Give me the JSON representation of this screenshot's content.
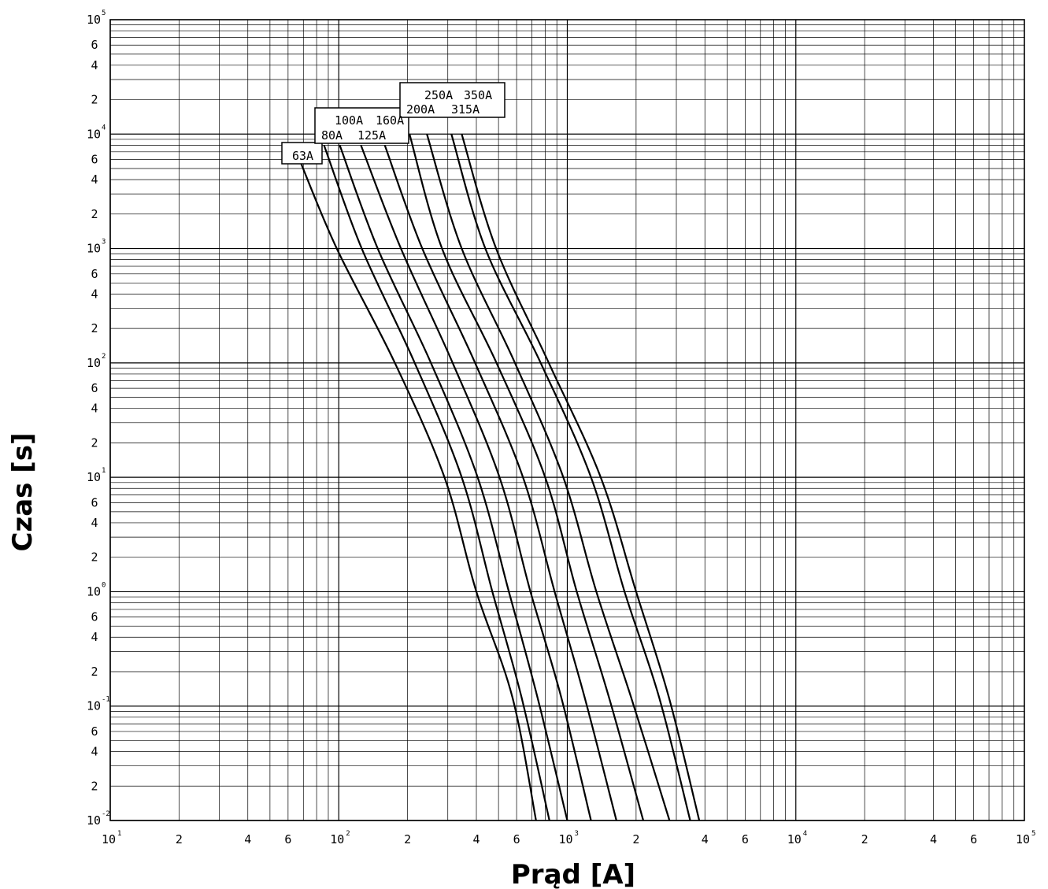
{
  "chart_data": {
    "type": "line",
    "xlabel": "Prąd [A]",
    "ylabel": "Czas [s]",
    "x_scale": "log",
    "y_scale": "log",
    "xlim": [
      10,
      100000
    ],
    "ylim": [
      0.01,
      100000
    ],
    "grid": true,
    "x_ticks": [
      {
        "value": 10,
        "base": "10",
        "exp": "1"
      },
      {
        "value": 20,
        "base": "2",
        "exp": ""
      },
      {
        "value": 40,
        "base": "4",
        "exp": ""
      },
      {
        "value": 60,
        "base": "6",
        "exp": ""
      },
      {
        "value": 100,
        "base": "10",
        "exp": "2"
      },
      {
        "value": 200,
        "base": "2",
        "exp": ""
      },
      {
        "value": 400,
        "base": "4",
        "exp": ""
      },
      {
        "value": 600,
        "base": "6",
        "exp": ""
      },
      {
        "value": 1000,
        "base": "10",
        "exp": "3"
      },
      {
        "value": 2000,
        "base": "2",
        "exp": ""
      },
      {
        "value": 4000,
        "base": "4",
        "exp": ""
      },
      {
        "value": 6000,
        "base": "6",
        "exp": ""
      },
      {
        "value": 10000,
        "base": "10",
        "exp": "4"
      },
      {
        "value": 20000,
        "base": "2",
        "exp": ""
      },
      {
        "value": 40000,
        "base": "4",
        "exp": ""
      },
      {
        "value": 60000,
        "base": "6",
        "exp": ""
      },
      {
        "value": 100000,
        "base": "10",
        "exp": "5"
      }
    ],
    "y_ticks": [
      {
        "value": 100000,
        "base": "10",
        "exp": "5"
      },
      {
        "value": 60000,
        "base": "6",
        "exp": ""
      },
      {
        "value": 40000,
        "base": "4",
        "exp": ""
      },
      {
        "value": 20000,
        "base": "2",
        "exp": ""
      },
      {
        "value": 10000,
        "base": "10",
        "exp": "4"
      },
      {
        "value": 6000,
        "base": "6",
        "exp": ""
      },
      {
        "value": 4000,
        "base": "4",
        "exp": ""
      },
      {
        "value": 2000,
        "base": "2",
        "exp": ""
      },
      {
        "value": 1000,
        "base": "10",
        "exp": "3"
      },
      {
        "value": 600,
        "base": "6",
        "exp": ""
      },
      {
        "value": 400,
        "base": "4",
        "exp": ""
      },
      {
        "value": 200,
        "base": "2",
        "exp": ""
      },
      {
        "value": 100,
        "base": "10",
        "exp": "2"
      },
      {
        "value": 60,
        "base": "6",
        "exp": ""
      },
      {
        "value": 40,
        "base": "4",
        "exp": ""
      },
      {
        "value": 20,
        "base": "2",
        "exp": ""
      },
      {
        "value": 10,
        "base": "10",
        "exp": "1"
      },
      {
        "value": 6,
        "base": "6",
        "exp": ""
      },
      {
        "value": 4,
        "base": "4",
        "exp": ""
      },
      {
        "value": 2,
        "base": "2",
        "exp": ""
      },
      {
        "value": 1,
        "base": "10",
        "exp": "0"
      },
      {
        "value": 0.6,
        "base": "6",
        "exp": ""
      },
      {
        "value": 0.4,
        "base": "4",
        "exp": ""
      },
      {
        "value": 0.2,
        "base": "2",
        "exp": ""
      },
      {
        "value": 0.1,
        "base": "10",
        "exp": "-1"
      },
      {
        "value": 0.06,
        "base": "6",
        "exp": ""
      },
      {
        "value": 0.04,
        "base": "4",
        "exp": ""
      },
      {
        "value": 0.02,
        "base": "2",
        "exp": ""
      },
      {
        "value": 0.01,
        "base": "10",
        "exp": "-2"
      }
    ],
    "series": [
      {
        "name": "63A",
        "points": [
          [
            67.3,
            6000
          ],
          [
            98,
            1000
          ],
          [
            176,
            100
          ],
          [
            290,
            10
          ],
          [
            400,
            1
          ],
          [
            575,
            0.12
          ],
          [
            730,
            0.01
          ]
        ]
      },
      {
        "name": "80A",
        "points": [
          [
            86.2,
            8000
          ],
          [
            126,
            1000
          ],
          [
            215,
            100
          ],
          [
            345,
            10
          ],
          [
            470,
            1
          ],
          [
            630,
            0.12
          ],
          [
            835,
            0.01
          ]
        ]
      },
      {
        "name": "100A",
        "points": [
          [
            101,
            8000
          ],
          [
            148,
            1000
          ],
          [
            253,
            100
          ],
          [
            405,
            10
          ],
          [
            555,
            1
          ],
          [
            740,
            0.12
          ],
          [
            1000,
            0.01
          ]
        ]
      },
      {
        "name": "125A",
        "points": [
          [
            125,
            8000
          ],
          [
            187,
            1000
          ],
          [
            315,
            100
          ],
          [
            505,
            10
          ],
          [
            690,
            1
          ],
          [
            940,
            0.12
          ],
          [
            1270,
            0.01
          ]
        ]
      },
      {
        "name": "160A",
        "points": [
          [
            159,
            8000
          ],
          [
            232,
            1000
          ],
          [
            395,
            100
          ],
          [
            640,
            10
          ],
          [
            880,
            1
          ],
          [
            1190,
            0.12
          ],
          [
            1640,
            0.01
          ]
        ]
      },
      {
        "name": "200A",
        "points": [
          [
            204,
            10000
          ],
          [
            283,
            1000
          ],
          [
            490,
            100
          ],
          [
            800,
            10
          ],
          [
            1100,
            1
          ],
          [
            1520,
            0.12
          ],
          [
            2150,
            0.01
          ]
        ]
      },
      {
        "name": "250A",
        "points": [
          [
            243,
            10000
          ],
          [
            345,
            1000
          ],
          [
            590,
            100
          ],
          [
            960,
            10
          ],
          [
            1340,
            1
          ],
          [
            1900,
            0.12
          ],
          [
            2800,
            0.01
          ]
        ]
      },
      {
        "name": "315A",
        "points": [
          [
            311,
            10000
          ],
          [
            438,
            1000
          ],
          [
            765,
            100
          ],
          [
            1270,
            10
          ],
          [
            1780,
            1
          ],
          [
            2520,
            0.12
          ],
          [
            3450,
            0.01
          ]
        ]
      },
      {
        "name": "350A",
        "points": [
          [
            345,
            10000
          ],
          [
            488,
            1000
          ],
          [
            830,
            100
          ],
          [
            1400,
            10
          ],
          [
            2000,
            1
          ],
          [
            2780,
            0.12
          ],
          [
            3780,
            0.01
          ]
        ]
      }
    ]
  }
}
